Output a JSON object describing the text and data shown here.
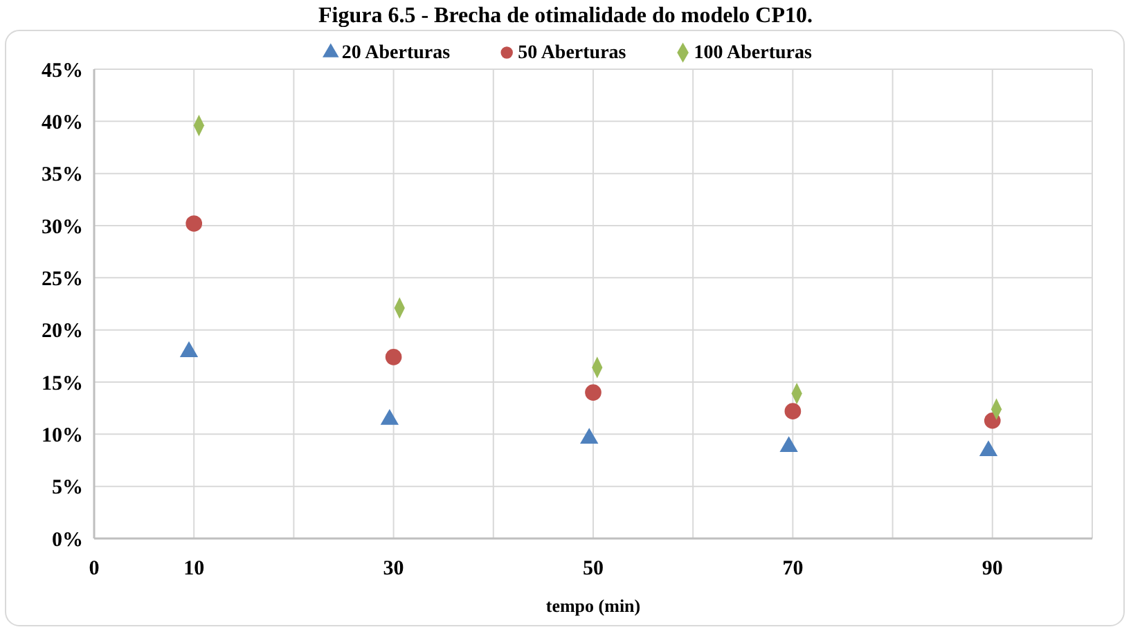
{
  "chart_data": {
    "type": "scatter",
    "title": "Figura 6.5 - Brecha de otimalidade do modelo CP10.",
    "xlabel": "tempo (min)",
    "xlim": [
      0,
      100
    ],
    "xticks": [
      0,
      10,
      {
        "value": 20,
        "label": null
      },
      30,
      {
        "value": 40,
        "label": null
      },
      50,
      {
        "value": 60,
        "label": null
      },
      70,
      {
        "value": 80,
        "label": null
      },
      90,
      {
        "value": 100,
        "label": null
      }
    ],
    "ylim": [
      0,
      45
    ],
    "yticks": [
      {
        "value": 0,
        "label": "0%"
      },
      {
        "value": 5,
        "label": "5%"
      },
      {
        "value": 10,
        "label": "10%"
      },
      {
        "value": 15,
        "label": "15%"
      },
      {
        "value": 20,
        "label": "20%"
      },
      {
        "value": 25,
        "label": "25%"
      },
      {
        "value": 30,
        "label": "30%"
      },
      {
        "value": 35,
        "label": "35%"
      },
      {
        "value": 40,
        "label": "40%"
      },
      {
        "value": 45,
        "label": "45%"
      }
    ],
    "grid": true,
    "legend": "top",
    "series": [
      {
        "name": "20 Aberturas",
        "color": "#4f81bd",
        "marker": "triangle",
        "x": [
          9.5,
          29.6,
          49.6,
          69.6,
          89.6
        ],
        "values": [
          17.9,
          11.4,
          9.6,
          8.8,
          8.4
        ]
      },
      {
        "name": "50 Aberturas",
        "color": "#c0504d",
        "marker": "circle",
        "x": [
          10,
          30,
          50,
          70,
          90
        ],
        "values": [
          30.2,
          17.4,
          14.0,
          12.2,
          11.3
        ]
      },
      {
        "name": "100 Aberturas",
        "color": "#9bbb59",
        "marker": "diamond",
        "x": [
          10.5,
          30.6,
          50.4,
          70.4,
          90.4
        ],
        "values": [
          39.6,
          22.1,
          16.4,
          13.9,
          12.4
        ]
      }
    ]
  }
}
